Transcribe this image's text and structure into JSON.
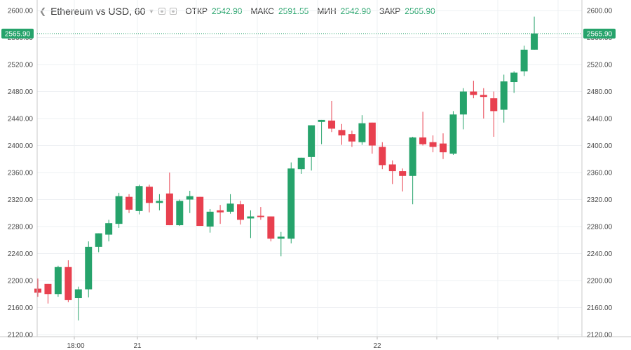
{
  "legend": {
    "title": "Ethereum vs USD, 60",
    "open_label": "ОТКР",
    "open_value": "2542.90",
    "high_label": "МАКС",
    "high_value": "2591.55",
    "low_label": "МИН",
    "low_value": "2542.90",
    "close_label": "ЗАКР",
    "close_value": "2565.90"
  },
  "current_price": "2565.90",
  "colors": {
    "up": "#26a36b",
    "down": "#e8404f",
    "grid": "#eef0f3",
    "price_line": "#26a36b"
  },
  "chart_data": {
    "type": "candlestick",
    "ylim": [
      2120,
      2600
    ],
    "yticks": [
      "2600.00",
      "2560.00",
      "2520.00",
      "2480.00",
      "2440.00",
      "2400.00",
      "2360.00",
      "2320.00",
      "2280.00",
      "2240.00",
      "2200.00",
      "2160.00",
      "2120.00"
    ],
    "xticks": [
      "18:00",
      "21",
      "22"
    ],
    "candles": [
      {
        "o": 2188,
        "h": 2203,
        "l": 2176,
        "c": 2182
      },
      {
        "o": 2195,
        "h": 2195,
        "l": 2166,
        "c": 2180
      },
      {
        "o": 2180,
        "h": 2222,
        "l": 2176,
        "c": 2220
      },
      {
        "o": 2220,
        "h": 2230,
        "l": 2168,
        "c": 2171
      },
      {
        "o": 2174,
        "h": 2191,
        "l": 2141,
        "c": 2187
      },
      {
        "o": 2187,
        "h": 2258,
        "l": 2175,
        "c": 2250
      },
      {
        "o": 2250,
        "h": 2270,
        "l": 2242,
        "c": 2270
      },
      {
        "o": 2268,
        "h": 2290,
        "l": 2258,
        "c": 2285
      },
      {
        "o": 2284,
        "h": 2330,
        "l": 2278,
        "c": 2325
      },
      {
        "o": 2324,
        "h": 2328,
        "l": 2300,
        "c": 2305
      },
      {
        "o": 2303,
        "h": 2342,
        "l": 2298,
        "c": 2340
      },
      {
        "o": 2339,
        "h": 2342,
        "l": 2301,
        "c": 2315
      },
      {
        "o": 2315,
        "h": 2328,
        "l": 2304,
        "c": 2318
      },
      {
        "o": 2329,
        "h": 2360,
        "l": 2282,
        "c": 2282
      },
      {
        "o": 2282,
        "h": 2320,
        "l": 2281,
        "c": 2318
      },
      {
        "o": 2320,
        "h": 2333,
        "l": 2300,
        "c": 2325
      },
      {
        "o": 2324,
        "h": 2324,
        "l": 2281,
        "c": 2281
      },
      {
        "o": 2280,
        "h": 2306,
        "l": 2271,
        "c": 2302
      },
      {
        "o": 2304,
        "h": 2312,
        "l": 2284,
        "c": 2301
      },
      {
        "o": 2302,
        "h": 2328,
        "l": 2299,
        "c": 2314
      },
      {
        "o": 2313,
        "h": 2318,
        "l": 2283,
        "c": 2290
      },
      {
        "o": 2292,
        "h": 2304,
        "l": 2263,
        "c": 2295
      },
      {
        "o": 2296,
        "h": 2309,
        "l": 2290,
        "c": 2294
      },
      {
        "o": 2295,
        "h": 2295,
        "l": 2258,
        "c": 2262
      },
      {
        "o": 2262,
        "h": 2272,
        "l": 2236,
        "c": 2265
      },
      {
        "o": 2262,
        "h": 2375,
        "l": 2255,
        "c": 2366
      },
      {
        "o": 2365,
        "h": 2382,
        "l": 2358,
        "c": 2382
      },
      {
        "o": 2383,
        "h": 2430,
        "l": 2363,
        "c": 2430
      },
      {
        "o": 2435,
        "h": 2438,
        "l": 2402,
        "c": 2438
      },
      {
        "o": 2437,
        "h": 2466,
        "l": 2420,
        "c": 2425
      },
      {
        "o": 2423,
        "h": 2432,
        "l": 2401,
        "c": 2415
      },
      {
        "o": 2417,
        "h": 2422,
        "l": 2398,
        "c": 2406
      },
      {
        "o": 2405,
        "h": 2445,
        "l": 2401,
        "c": 2433
      },
      {
        "o": 2434,
        "h": 2434,
        "l": 2388,
        "c": 2400
      },
      {
        "o": 2398,
        "h": 2405,
        "l": 2365,
        "c": 2371
      },
      {
        "o": 2372,
        "h": 2378,
        "l": 2343,
        "c": 2362
      },
      {
        "o": 2362,
        "h": 2366,
        "l": 2332,
        "c": 2355
      },
      {
        "o": 2355,
        "h": 2413,
        "l": 2313,
        "c": 2412
      },
      {
        "o": 2412,
        "h": 2450,
        "l": 2400,
        "c": 2402
      },
      {
        "o": 2405,
        "h": 2415,
        "l": 2390,
        "c": 2398
      },
      {
        "o": 2403,
        "h": 2418,
        "l": 2380,
        "c": 2390
      },
      {
        "o": 2388,
        "h": 2451,
        "l": 2386,
        "c": 2446
      },
      {
        "o": 2446,
        "h": 2485,
        "l": 2424,
        "c": 2480
      },
      {
        "o": 2480,
        "h": 2496,
        "l": 2470,
        "c": 2475
      },
      {
        "o": 2475,
        "h": 2485,
        "l": 2440,
        "c": 2472
      },
      {
        "o": 2470,
        "h": 2480,
        "l": 2413,
        "c": 2451
      },
      {
        "o": 2453,
        "h": 2505,
        "l": 2434,
        "c": 2495
      },
      {
        "o": 2494,
        "h": 2510,
        "l": 2478,
        "c": 2508
      },
      {
        "o": 2510,
        "h": 2548,
        "l": 2503,
        "c": 2542
      },
      {
        "o": 2542,
        "h": 2591,
        "l": 2542,
        "c": 2566
      }
    ]
  }
}
